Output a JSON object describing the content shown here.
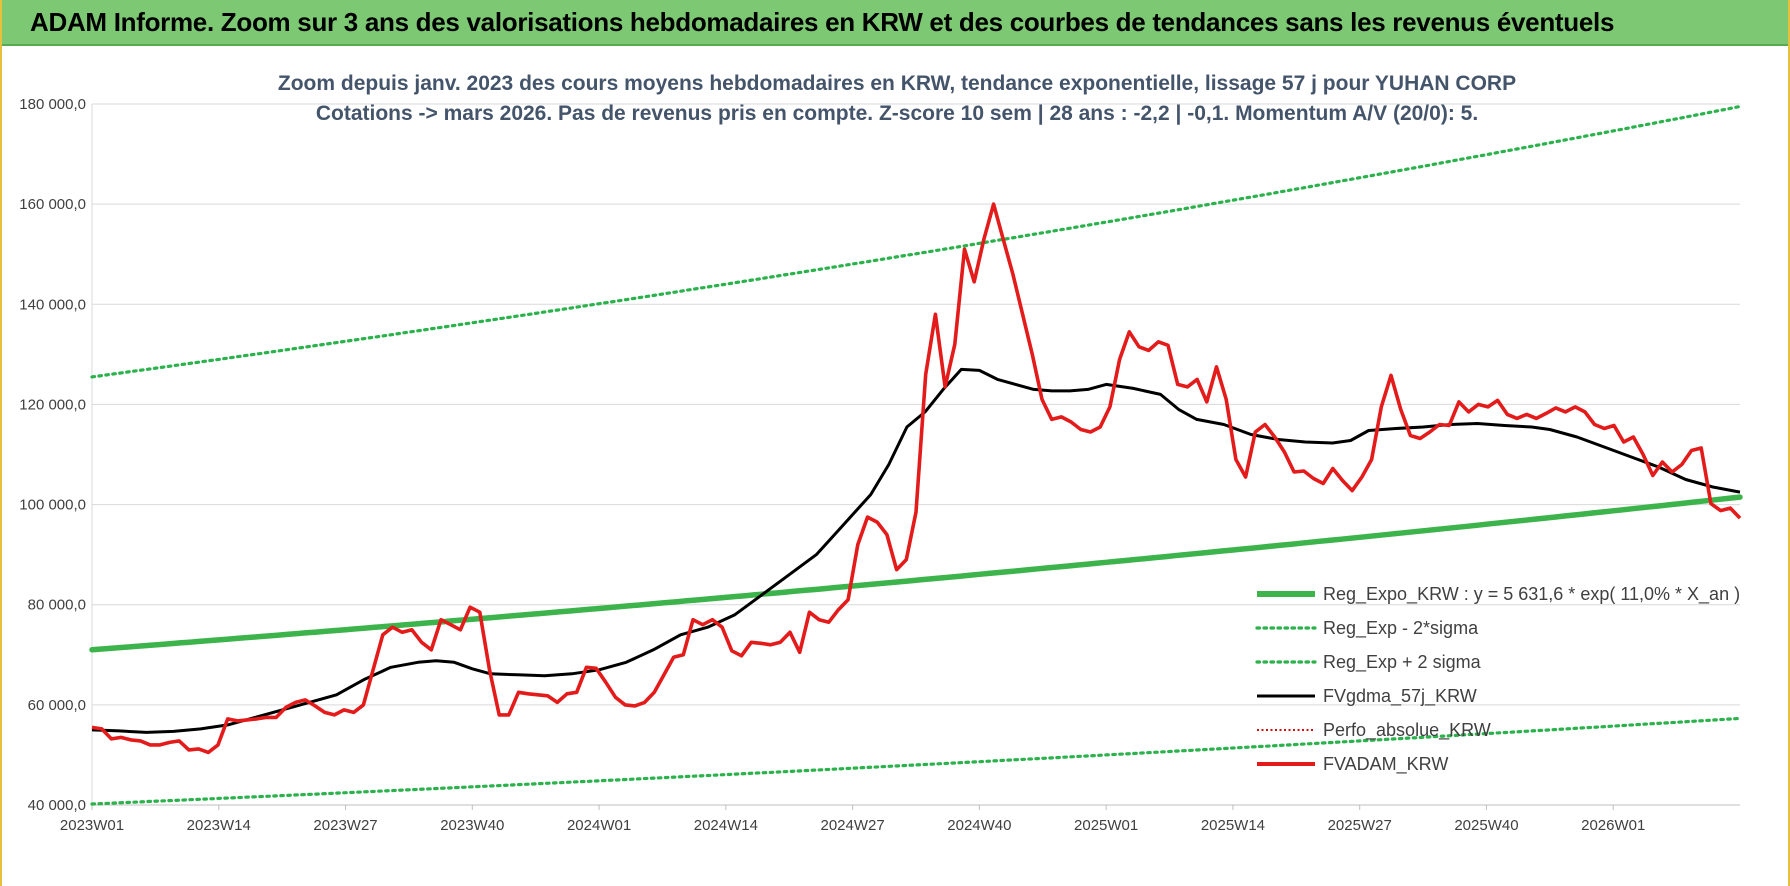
{
  "banner": {
    "title": "ADAM Informe. Zoom sur 3 ans des valorisations hebdomadaires en KRW et des courbes de tendances sans les revenus éventuels"
  },
  "colors": {
    "banner_bg": "#7dc873",
    "price": "#e31b1b",
    "smooth": "#000000",
    "trend": "#3cb44b",
    "band": "#2bb24c",
    "perfo": "#d01010"
  },
  "chart_data": {
    "type": "line",
    "subtitle_line1": "Zoom depuis janv. 2023 des cours moyens hebdomadaires en KRW, tendance exponentielle, lissage 57 j pour YUHAN CORP",
    "subtitle_line2": "Cotations -> mars 2026. Pas de revenus pris en compte. Z-score 10 sem | 28 ans : -2,2 | -0,1. Momentum A/V (20/0): 5.",
    "ylim": [
      40000,
      180000
    ],
    "y_ticks": [
      {
        "value": 40000,
        "label": "40 000,0"
      },
      {
        "value": 60000,
        "label": "60 000,0"
      },
      {
        "value": 80000,
        "label": "80 000,0"
      },
      {
        "value": 100000,
        "label": "100 000,0"
      },
      {
        "value": 120000,
        "label": "120 000,0"
      },
      {
        "value": 140000,
        "label": "140 000,0"
      },
      {
        "value": 160000,
        "label": "160 000,0"
      },
      {
        "value": 180000,
        "label": "180 000,0"
      }
    ],
    "x_ticks": [
      {
        "week": 0,
        "label": "2023W01"
      },
      {
        "week": 13,
        "label": "2023W14"
      },
      {
        "week": 26,
        "label": "2023W27"
      },
      {
        "week": 39,
        "label": "2023W40"
      },
      {
        "week": 52,
        "label": "2024W01"
      },
      {
        "week": 65,
        "label": "2024W14"
      },
      {
        "week": 78,
        "label": "2024W27"
      },
      {
        "week": 91,
        "label": "2024W40"
      },
      {
        "week": 104,
        "label": "2025W01"
      },
      {
        "week": 117,
        "label": "2025W14"
      },
      {
        "week": 130,
        "label": "2025W27"
      },
      {
        "week": 143,
        "label": "2025W40"
      },
      {
        "week": 156,
        "label": "2026W01"
      }
    ],
    "x_max_week": 169,
    "legend": [
      {
        "key": "trend",
        "label": "Reg_Expo_KRW : y = 5 631,6 * exp( 11,0% *  X_an )"
      },
      {
        "key": "lower",
        "label": "Reg_Exp - 2*sigma"
      },
      {
        "key": "upper",
        "label": "Reg_Exp + 2 sigma"
      },
      {
        "key": "smooth",
        "label": "FVgdma_57j_KRW"
      },
      {
        "key": "perfo",
        "label": "Perfo_absolue_KRW"
      },
      {
        "key": "price",
        "label": "FVADAM_KRW"
      }
    ],
    "series": {
      "trend": {
        "start": 71000,
        "end": 101500
      },
      "lower": {
        "start": 40200,
        "end": 57300
      },
      "upper": {
        "start": 125500,
        "end": 179500
      },
      "smooth": [
        [
          0,
          55000
        ],
        [
          3,
          54800
        ],
        [
          6,
          54500
        ],
        [
          9,
          54700
        ],
        [
          12,
          55200
        ],
        [
          15,
          56000
        ],
        [
          18,
          57500
        ],
        [
          21,
          59000
        ],
        [
          24,
          60500
        ],
        [
          27,
          62000
        ],
        [
          30,
          65000
        ],
        [
          33,
          67500
        ],
        [
          36,
          68500
        ],
        [
          38,
          68800
        ],
        [
          40,
          68500
        ],
        [
          42,
          67200
        ],
        [
          44,
          66200
        ],
        [
          47,
          66000
        ],
        [
          50,
          65800
        ],
        [
          53,
          66200
        ],
        [
          56,
          67000
        ],
        [
          59,
          68500
        ],
        [
          62,
          71000
        ],
        [
          65,
          74000
        ],
        [
          68,
          75500
        ],
        [
          71,
          78000
        ],
        [
          74,
          82000
        ],
        [
          77,
          86000
        ],
        [
          80,
          90000
        ],
        [
          83,
          96000
        ],
        [
          86,
          102000
        ],
        [
          88,
          108000
        ],
        [
          90,
          115500
        ],
        [
          92,
          118500
        ],
        [
          94,
          123000
        ],
        [
          96,
          127000
        ],
        [
          98,
          126800
        ],
        [
          100,
          125000
        ],
        [
          102,
          124000
        ],
        [
          104,
          123000
        ],
        [
          106,
          122700
        ],
        [
          108,
          122700
        ],
        [
          110,
          123000
        ],
        [
          112,
          124000
        ],
        [
          115,
          123200
        ],
        [
          118,
          122000
        ],
        [
          120,
          119000
        ],
        [
          122,
          117000
        ],
        [
          125,
          116000
        ],
        [
          128,
          114000
        ],
        [
          131,
          113000
        ],
        [
          134,
          112500
        ],
        [
          137,
          112300
        ],
        [
          139,
          112800
        ],
        [
          141,
          114800
        ],
        [
          144,
          115200
        ],
        [
          147,
          115500
        ],
        [
          150,
          116000
        ],
        [
          153,
          116200
        ],
        [
          156,
          115800
        ],
        [
          159,
          115500
        ],
        [
          161,
          115000
        ],
        [
          164,
          113500
        ],
        [
          167,
          111500
        ],
        [
          170,
          109500
        ],
        [
          173,
          107500
        ],
        [
          176,
          105000
        ],
        [
          179,
          103500
        ],
        [
          182,
          102500
        ]
      ],
      "price": [
        [
          0,
          55500
        ],
        [
          1,
          55200
        ],
        [
          2,
          53200
        ],
        [
          3,
          53500
        ],
        [
          4,
          53000
        ],
        [
          5,
          52800
        ],
        [
          6,
          52000
        ],
        [
          7,
          52000
        ],
        [
          8,
          52500
        ],
        [
          9,
          52800
        ],
        [
          10,
          51000
        ],
        [
          11,
          51200
        ],
        [
          12,
          50500
        ],
        [
          13,
          52000
        ],
        [
          14,
          57200
        ],
        [
          15,
          56800
        ],
        [
          16,
          57000
        ],
        [
          17,
          57200
        ],
        [
          18,
          57500
        ],
        [
          19,
          57500
        ],
        [
          20,
          59500
        ],
        [
          21,
          60500
        ],
        [
          22,
          61000
        ],
        [
          23,
          59800
        ],
        [
          24,
          58500
        ],
        [
          25,
          58000
        ],
        [
          26,
          59000
        ],
        [
          27,
          58500
        ],
        [
          28,
          60000
        ],
        [
          29,
          67000
        ],
        [
          30,
          74000
        ],
        [
          31,
          75500
        ],
        [
          32,
          74500
        ],
        [
          33,
          75000
        ],
        [
          34,
          72500
        ],
        [
          35,
          71000
        ],
        [
          36,
          77000
        ],
        [
          37,
          76000
        ],
        [
          38,
          75000
        ],
        [
          39,
          79500
        ],
        [
          40,
          78500
        ],
        [
          41,
          67000
        ],
        [
          42,
          58000
        ],
        [
          43,
          58000
        ],
        [
          44,
          62500
        ],
        [
          45,
          62200
        ],
        [
          46,
          62000
        ],
        [
          47,
          61800
        ],
        [
          48,
          60500
        ],
        [
          49,
          62200
        ],
        [
          50,
          62500
        ],
        [
          51,
          67500
        ],
        [
          52,
          67300
        ],
        [
          53,
          64500
        ],
        [
          54,
          61500
        ],
        [
          55,
          60000
        ],
        [
          56,
          59800
        ],
        [
          57,
          60500
        ],
        [
          58,
          62500
        ],
        [
          59,
          66000
        ],
        [
          60,
          69500
        ],
        [
          61,
          70000
        ],
        [
          62,
          77000
        ],
        [
          63,
          76000
        ],
        [
          64,
          77000
        ],
        [
          65,
          75500
        ],
        [
          66,
          70800
        ],
        [
          67,
          69800
        ],
        [
          68,
          72500
        ],
        [
          69,
          72300
        ],
        [
          70,
          72000
        ],
        [
          71,
          72500
        ],
        [
          72,
          74500
        ],
        [
          73,
          70500
        ],
        [
          74,
          78500
        ],
        [
          75,
          77000
        ],
        [
          76,
          76500
        ],
        [
          77,
          79000
        ],
        [
          78,
          81000
        ],
        [
          79,
          92000
        ],
        [
          80,
          97500
        ],
        [
          81,
          96500
        ],
        [
          82,
          94000
        ],
        [
          83,
          87000
        ],
        [
          84,
          89000
        ],
        [
          85,
          98500
        ],
        [
          86,
          126000
        ],
        [
          87,
          138000
        ],
        [
          88,
          123500
        ],
        [
          89,
          132000
        ],
        [
          90,
          151000
        ],
        [
          91,
          144500
        ],
        [
          92,
          153000
        ],
        [
          93,
          160000
        ],
        [
          94,
          153000
        ],
        [
          95,
          146000
        ],
        [
          96,
          138000
        ],
        [
          97,
          130000
        ],
        [
          98,
          121000
        ],
        [
          99,
          117000
        ],
        [
          100,
          117500
        ],
        [
          101,
          116500
        ],
        [
          102,
          115000
        ],
        [
          103,
          114500
        ],
        [
          104,
          115500
        ],
        [
          105,
          119500
        ],
        [
          106,
          129000
        ],
        [
          107,
          134500
        ],
        [
          108,
          131500
        ],
        [
          109,
          130800
        ],
        [
          110,
          132500
        ],
        [
          111,
          131800
        ],
        [
          112,
          124000
        ],
        [
          113,
          123500
        ],
        [
          114,
          125000
        ],
        [
          115,
          120500
        ],
        [
          116,
          127500
        ],
        [
          117,
          121000
        ],
        [
          118,
          109000
        ],
        [
          119,
          105500
        ],
        [
          120,
          114500
        ],
        [
          121,
          116000
        ],
        [
          122,
          113500
        ],
        [
          123,
          110500
        ],
        [
          124,
          106500
        ],
        [
          125,
          106700
        ],
        [
          126,
          105200
        ],
        [
          127,
          104200
        ],
        [
          128,
          107200
        ],
        [
          129,
          104800
        ],
        [
          130,
          102800
        ],
        [
          131,
          105500
        ],
        [
          132,
          109000
        ],
        [
          133,
          119500
        ],
        [
          134,
          125800
        ],
        [
          135,
          119000
        ],
        [
          136,
          113800
        ],
        [
          137,
          113200
        ],
        [
          138,
          114500
        ],
        [
          139,
          116000
        ],
        [
          140,
          115800
        ],
        [
          141,
          120500
        ],
        [
          142,
          118500
        ],
        [
          143,
          120000
        ],
        [
          144,
          119500
        ],
        [
          145,
          120800
        ],
        [
          146,
          118000
        ],
        [
          147,
          117200
        ],
        [
          148,
          118000
        ],
        [
          149,
          117200
        ],
        [
          150,
          118200
        ],
        [
          151,
          119300
        ],
        [
          152,
          118500
        ],
        [
          153,
          119500
        ],
        [
          154,
          118500
        ],
        [
          155,
          116000
        ],
        [
          156,
          115200
        ],
        [
          157,
          115800
        ],
        [
          158,
          112500
        ],
        [
          159,
          113500
        ],
        [
          160,
          110000
        ],
        [
          161,
          105800
        ],
        [
          162,
          108500
        ],
        [
          163,
          106500
        ],
        [
          164,
          108000
        ],
        [
          165,
          110800
        ],
        [
          166,
          111300
        ],
        [
          167,
          100200
        ],
        [
          168,
          98800
        ],
        [
          169,
          99300
        ],
        [
          170,
          97300
        ]
      ]
    }
  }
}
